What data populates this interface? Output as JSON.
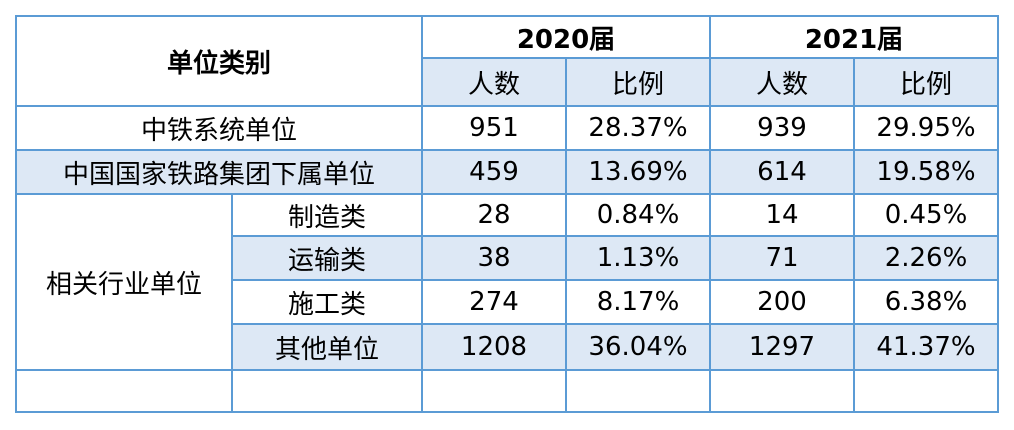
{
  "header": {
    "category": "单位类别",
    "years": [
      "2020届",
      "2021届"
    ],
    "columns": [
      "人数",
      "比例",
      "人数",
      "比例"
    ]
  },
  "rows": [
    {
      "label": "中铁系统单位",
      "cells": [
        "951",
        "28.37%",
        "939",
        "29.95%"
      ]
    },
    {
      "label": "中国国家铁路集团下属单位",
      "cells": [
        "459",
        "13.69%",
        "614",
        "19.58%"
      ]
    }
  ],
  "group": {
    "label": "相关行业单位",
    "items": [
      {
        "label": "制造类",
        "cells": [
          "28",
          "0.84%",
          "14",
          "0.45%"
        ]
      },
      {
        "label": "运输类",
        "cells": [
          "38",
          "1.13%",
          "71",
          "2.26%"
        ]
      },
      {
        "label": "施工类",
        "cells": [
          "274",
          "8.17%",
          "200",
          "6.38%"
        ]
      },
      {
        "label": "其他单位",
        "cells": [
          "1208",
          "36.04%",
          "1297",
          "41.37%"
        ]
      }
    ]
  }
}
